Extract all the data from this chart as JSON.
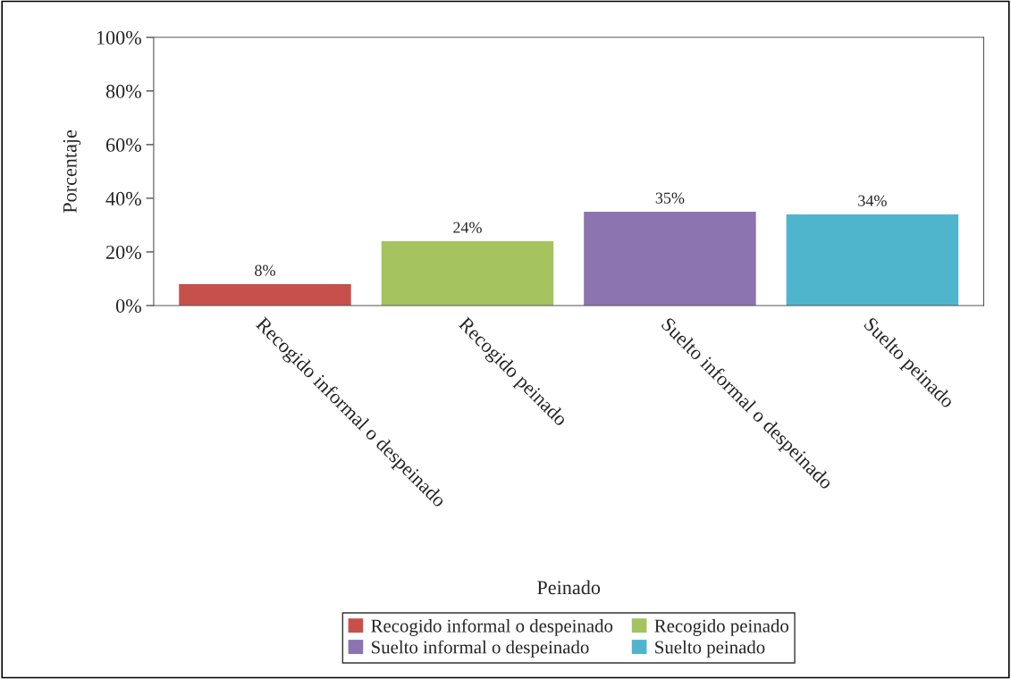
{
  "chart_data": {
    "type": "bar",
    "categories": [
      "Recogido informal o despeinado",
      "Recogido peinado",
      "Suelto informal o despeinado",
      "Suelto peinado"
    ],
    "series": [
      {
        "name": "Recogido informal o despeinado",
        "color": "#c8504b",
        "values": [
          8,
          null,
          null,
          null
        ],
        "value_labels": [
          "8%",
          null,
          null,
          null
        ]
      },
      {
        "name": "Recogido peinado",
        "color": "#a5c35f",
        "values": [
          null,
          24,
          null,
          null
        ],
        "value_labels": [
          null,
          "24%",
          null,
          null
        ]
      },
      {
        "name": "Suelto informal o despeinado",
        "color": "#8c74b0",
        "values": [
          null,
          null,
          35,
          null
        ],
        "value_labels": [
          null,
          null,
          "35%",
          null
        ]
      },
      {
        "name": "Suelto peinado",
        "color": "#4fb5cc",
        "values": [
          null,
          null,
          null,
          34
        ],
        "value_labels": [
          null,
          null,
          null,
          "34%"
        ]
      }
    ],
    "xlabel": "Peinado",
    "ylabel": "Porcentaje",
    "ylim": [
      0,
      100
    ],
    "yticks": [
      {
        "value": 0,
        "label": "0%"
      },
      {
        "value": 20,
        "label": "20%"
      },
      {
        "value": 40,
        "label": "40%"
      },
      {
        "value": 60,
        "label": "60%"
      },
      {
        "value": 80,
        "label": "80%"
      },
      {
        "value": 100,
        "label": "100%"
      }
    ],
    "grid": false,
    "legend": "bottom"
  }
}
